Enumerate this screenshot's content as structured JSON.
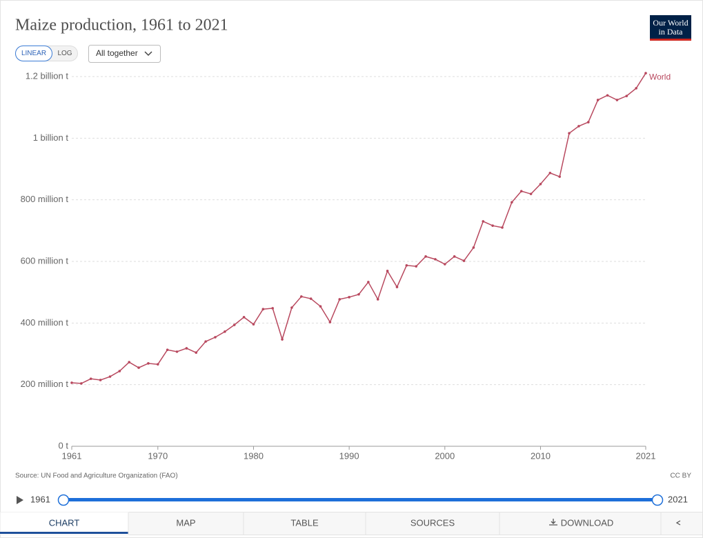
{
  "header": {
    "title": "Maize production, 1961 to 2021",
    "logo": [
      "Our World",
      "in Data"
    ],
    "scale_buttons": [
      "LINEAR",
      "LOG"
    ],
    "selector": "All together"
  },
  "chart_data": {
    "type": "line",
    "x": [
      1961,
      1962,
      1963,
      1964,
      1965,
      1966,
      1967,
      1968,
      1969,
      1970,
      1971,
      1972,
      1973,
      1974,
      1975,
      1976,
      1977,
      1978,
      1979,
      1980,
      1981,
      1982,
      1983,
      1984,
      1985,
      1986,
      1987,
      1988,
      1989,
      1990,
      1991,
      1992,
      1993,
      1994,
      1995,
      1996,
      1997,
      1998,
      1999,
      2000,
      2001,
      2002,
      2003,
      2004,
      2005,
      2006,
      2007,
      2008,
      2009,
      2010,
      2011,
      2012,
      2013,
      2014,
      2015,
      2016,
      2017,
      2018,
      2019,
      2020,
      2021
    ],
    "series": [
      {
        "name": "World",
        "color": "#b8485e",
        "values": [
          206000000,
          204000000,
          219000000,
          215000000,
          226000000,
          244000000,
          273000000,
          255000000,
          269000000,
          266000000,
          313000000,
          307000000,
          318000000,
          304000000,
          340000000,
          354000000,
          372000000,
          394000000,
          419000000,
          396000000,
          445000000,
          448000000,
          347000000,
          450000000,
          486000000,
          479000000,
          454000000,
          403000000,
          477000000,
          484000000,
          493000000,
          533000000,
          477000000,
          569000000,
          517000000,
          587000000,
          584000000,
          616000000,
          607000000,
          591000000,
          616000000,
          602000000,
          645000000,
          730000000,
          716000000,
          710000000,
          792000000,
          828000000,
          819000000,
          851000000,
          887000000,
          875000000,
          1016000000,
          1039000000,
          1052000000,
          1124000000,
          1139000000,
          1124000000,
          1137000000,
          1162000000,
          1211000000
        ]
      }
    ],
    "xlim": [
      1961,
      2021
    ],
    "xticks": [
      1961,
      1970,
      1980,
      1990,
      2000,
      2010,
      2021
    ],
    "ylim": [
      0,
      1200000000
    ],
    "yticks": [
      {
        "value": 0,
        "label": "0 t"
      },
      {
        "value": 200000000,
        "label": "200 million t"
      },
      {
        "value": 400000000,
        "label": "400 million t"
      },
      {
        "value": 600000000,
        "label": "600 million t"
      },
      {
        "value": 800000000,
        "label": "800 million t"
      },
      {
        "value": 1000000000,
        "label": "1 billion t"
      },
      {
        "value": 1200000000,
        "label": "1.2 billion t"
      }
    ],
    "grid": true
  },
  "footer": {
    "source": "Source: UN Food and Agriculture Organization (FAO)",
    "license": "CC BY"
  },
  "timeline": {
    "start": "1961",
    "end": "2021"
  },
  "tabs": [
    "CHART",
    "MAP",
    "TABLE",
    "SOURCES",
    "DOWNLOAD"
  ]
}
